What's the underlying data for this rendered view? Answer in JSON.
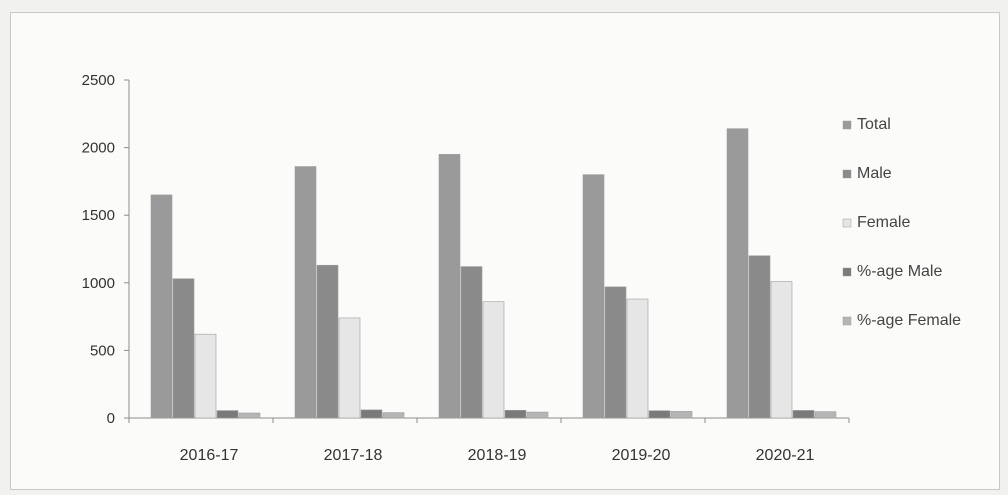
{
  "chart_data": {
    "type": "bar",
    "title": "",
    "xlabel": "",
    "ylabel": "",
    "ylim": [
      0,
      2500
    ],
    "yticks": [
      0,
      500,
      1000,
      1500,
      2000,
      2500
    ],
    "categories": [
      "2016-17",
      "2017-18",
      "2018-19",
      "2019-20",
      "2020-21"
    ],
    "grid": false,
    "legend_position": "right",
    "series": [
      {
        "name": "Total",
        "values": [
          1650,
          1860,
          1950,
          1800,
          2140
        ],
        "color": "#9a9a9a"
      },
      {
        "name": "Male",
        "values": [
          1030,
          1130,
          1120,
          970,
          1200
        ],
        "color": "#8a8a8a"
      },
      {
        "name": "Female",
        "values": [
          620,
          740,
          860,
          880,
          1010
        ],
        "color": "#e6e6e6"
      },
      {
        "name": "%-age Male",
        "values": [
          55,
          60,
          57,
          54,
          56
        ],
        "color": "#7a7a7a"
      },
      {
        "name": "%-age Female",
        "values": [
          37,
          40,
          44,
          49,
          47
        ],
        "color": "#b5b5b5"
      }
    ]
  }
}
